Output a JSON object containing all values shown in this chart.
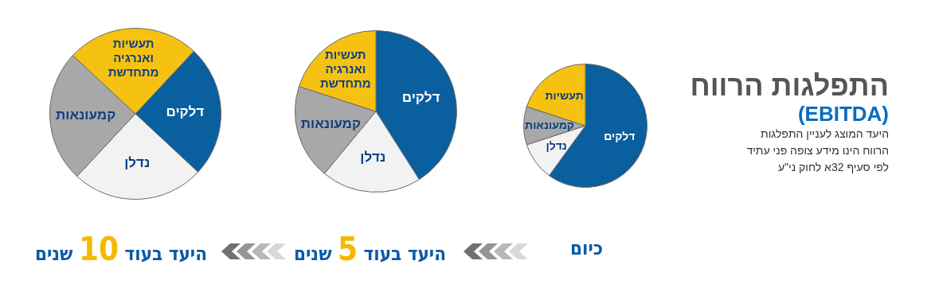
{
  "chart_data": [
    {
      "type": "other",
      "title": "התפלגות הרווח",
      "subtitle": "(EBITDA)",
      "annotations": [
        "היעד המוצג לעניין התפלגות",
        "הרווח הינו מידע צופה פני עתיד",
        "לפי סעיף 32א לחוק ני\"ע"
      ]
    },
    {
      "type": "pie",
      "title": "כיום",
      "categories": [
        "דלקים",
        "נדלן",
        "קמעונאות",
        "תעשיות"
      ],
      "values": [
        60,
        10,
        10,
        20
      ],
      "colors": [
        "#0a5f9e",
        "#f2f2f2",
        "#a8a8a8",
        "#f5c211"
      ],
      "legend": false
    },
    {
      "type": "pie",
      "title": "היעד בעוד 5 שנים",
      "categories": [
        "דלקים",
        "נדלן",
        "קמעונאות",
        "תעשיות ואנרגיה מתחדשת"
      ],
      "values": [
        41,
        20,
        19,
        20
      ],
      "colors": [
        "#0a5f9e",
        "#f2f2f2",
        "#a8a8a8",
        "#f5c211"
      ],
      "legend": false
    },
    {
      "type": "pie",
      "title": "היעד בעוד 10 שנים",
      "categories": [
        "דלקים",
        "נדלן",
        "קמעונאות",
        "תעשיות ואנרגיה מתחדשת"
      ],
      "values": [
        25,
        25,
        25,
        25
      ],
      "colors": [
        "#0a5f9e",
        "#f2f2f2",
        "#a8a8a8",
        "#f5c211"
      ],
      "legend": false
    }
  ]
}
